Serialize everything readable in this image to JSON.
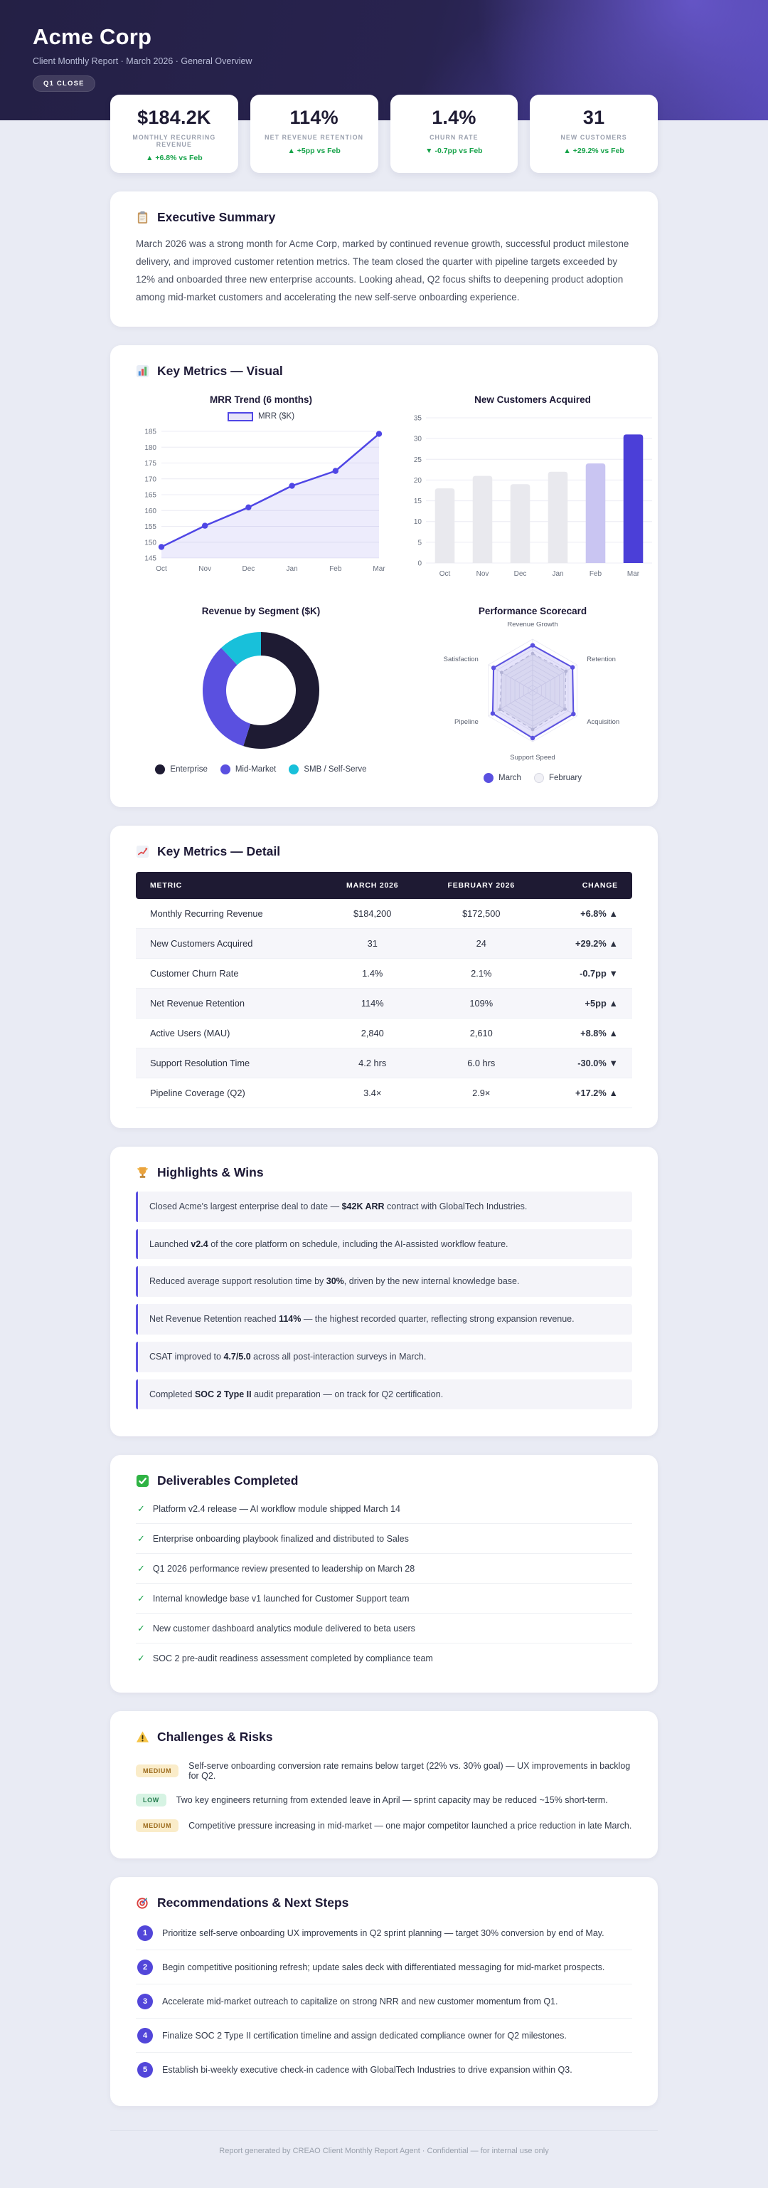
{
  "header": {
    "title": "Acme Corp",
    "subtitle": "Client Monthly Report  ·  March 2026  ·  General Overview",
    "badge": "Q1 CLOSE"
  },
  "kpis": [
    {
      "value": "$184.2K",
      "label": "MONTHLY RECURRING REVENUE",
      "delta": "▲ +6.8% vs Feb"
    },
    {
      "value": "114%",
      "label": "NET REVENUE RETENTION",
      "delta": "▲ +5pp vs Feb"
    },
    {
      "value": "1.4%",
      "label": "CHURN RATE",
      "delta": "▼ -0.7pp vs Feb"
    },
    {
      "value": "31",
      "label": "NEW CUSTOMERS",
      "delta": "▲ +29.2% vs Feb"
    }
  ],
  "sections": {
    "executive_summary": {
      "icon": "clipboard-icon",
      "title": "Executive Summary",
      "body": "March 2026 was a strong month for Acme Corp, marked by continued revenue growth, successful product milestone delivery, and improved customer retention metrics. The team closed the quarter with pipeline targets exceeded by 12% and onboarded three new enterprise accounts. Looking ahead, Q2 focus shifts to deepening product adoption among mid-market customers and accelerating the new self-serve onboarding experience."
    },
    "visual": {
      "icon": "bar-chart-icon",
      "title": "Key Metrics — Visual"
    },
    "detail": {
      "icon": "line-chart-icon",
      "title": "Key Metrics — Detail",
      "table": {
        "headers": [
          "METRIC",
          "MARCH 2026",
          "FEBRUARY 2026",
          "CHANGE"
        ],
        "rows": [
          {
            "metric": "Monthly Recurring Revenue",
            "march": "$184,200",
            "february": "$172,500",
            "change": "+6.8% ▲"
          },
          {
            "metric": "New Customers Acquired",
            "march": "31",
            "february": "24",
            "change": "+29.2% ▲"
          },
          {
            "metric": "Customer Churn Rate",
            "march": "1.4%",
            "february": "2.1%",
            "change": "-0.7pp ▼"
          },
          {
            "metric": "Net Revenue Retention",
            "march": "114%",
            "february": "109%",
            "change": "+5pp ▲"
          },
          {
            "metric": "Active Users (MAU)",
            "march": "2,840",
            "february": "2,610",
            "change": "+8.8% ▲"
          },
          {
            "metric": "Support Resolution Time",
            "march": "4.2 hrs",
            "february": "6.0 hrs",
            "change": "-30.0% ▼"
          },
          {
            "metric": "Pipeline Coverage (Q2)",
            "march": "3.4×",
            "february": "2.9×",
            "change": "+17.2% ▲"
          }
        ]
      }
    },
    "highlights": {
      "icon": "trophy-icon",
      "title": "Highlights & Wins",
      "items": [
        "Closed Acme's largest enterprise deal to date — **$42K ARR** contract with GlobalTech Industries.",
        "Launched **v2.4** of the core platform on schedule, including the AI-assisted workflow feature.",
        "Reduced average support resolution time by **30%**, driven by the new internal knowledge base.",
        "Net Revenue Retention reached **114%** — the highest recorded quarter, reflecting strong expansion revenue.",
        "CSAT improved to **4.7/5.0** across all post-interaction surveys in March.",
        "Completed **SOC 2 Type II** audit preparation — on track for Q2 certification."
      ]
    },
    "deliverables": {
      "icon": "check-icon",
      "title": "Deliverables Completed",
      "check_glyph": "✓",
      "items": [
        "Platform v2.4 release — AI workflow module shipped March 14",
        "Enterprise onboarding playbook finalized and distributed to Sales",
        "Q1 2026 performance review presented to leadership on March 28",
        "Internal knowledge base v1 launched for Customer Support team",
        "New customer dashboard analytics module delivered to beta users",
        "SOC 2 pre-audit readiness assessment completed by compliance team"
      ]
    },
    "risks": {
      "icon": "warning-icon",
      "title": "Challenges & Risks",
      "items": [
        {
          "severity": "MEDIUM",
          "text": "Self-serve onboarding conversion rate remains below target (22% vs. 30% goal) — UX improvements in backlog for Q2."
        },
        {
          "severity": "LOW",
          "text": "Two key engineers returning from extended leave in April — sprint capacity may be reduced ~15% short-term."
        },
        {
          "severity": "MEDIUM",
          "text": "Competitive pressure increasing in mid-market — one major competitor launched a price reduction in late March."
        }
      ]
    },
    "recommendations": {
      "icon": "target-icon",
      "title": "Recommendations & Next Steps",
      "items": [
        "Prioritize self-serve onboarding UX improvements in Q2 sprint planning — target 30% conversion by end of May.",
        "Begin competitive positioning refresh; update sales deck with differentiated messaging for mid-market prospects.",
        "Accelerate mid-market outreach to capitalize on strong NRR and new customer momentum from Q1.",
        "Finalize SOC 2 Type II certification timeline and assign dedicated compliance owner for Q2 milestones.",
        "Establish bi-weekly executive check-in cadence with GlobalTech Industries to drive expansion within Q3."
      ]
    }
  },
  "chart_data": [
    {
      "type": "area",
      "title": "MRR Trend (6 months)",
      "legend": [
        "MRR ($K)"
      ],
      "x": [
        "Oct",
        "Nov",
        "Dec",
        "Jan",
        "Feb",
        "Mar"
      ],
      "values": [
        148.5,
        155.2,
        161.0,
        167.8,
        172.5,
        184.2
      ],
      "ylim": [
        145,
        185
      ],
      "ytick": 5,
      "line_color": "#4f46e5",
      "grid": true
    },
    {
      "type": "bar",
      "title": "New Customers Acquired",
      "categories": [
        "Oct",
        "Nov",
        "Dec",
        "Jan",
        "Feb",
        "Mar"
      ],
      "values": [
        18,
        21,
        19,
        22,
        24,
        31
      ],
      "bar_colors": [
        "#e9e9ee",
        "#e9e9ee",
        "#e9e9ee",
        "#e9e9ee",
        "#c9c5f2",
        "#4b3fd8"
      ],
      "ylim": [
        0,
        35
      ],
      "ytick": 5,
      "grid": true
    },
    {
      "type": "pie",
      "title": "Revenue by Segment ($K)",
      "labels": [
        "Enterprise",
        "Mid-Market",
        "SMB / Self-Serve"
      ],
      "values": [
        101,
        61,
        22
      ],
      "colors": [
        "#1e1b33",
        "#5a50e0",
        "#18c0da"
      ],
      "donut": true
    },
    {
      "type": "radar",
      "title": "Performance Scorecard",
      "axes": [
        "Revenue Growth",
        "Retention",
        "Acquisition",
        "Support Speed",
        "Pipeline",
        "Satisfaction"
      ],
      "max": 100,
      "series": [
        {
          "name": "March",
          "values": [
            88,
            90,
            92,
            93,
            90,
            88
          ],
          "color": "#5a50e0"
        },
        {
          "name": "February",
          "values": [
            72,
            75,
            73,
            76,
            74,
            70
          ],
          "color": "#c3c5d3"
        }
      ],
      "legend_position": "bottom"
    }
  ],
  "footer": "Report generated by CREAO Client Monthly Report Agent  ·  Confidential — for internal use only"
}
